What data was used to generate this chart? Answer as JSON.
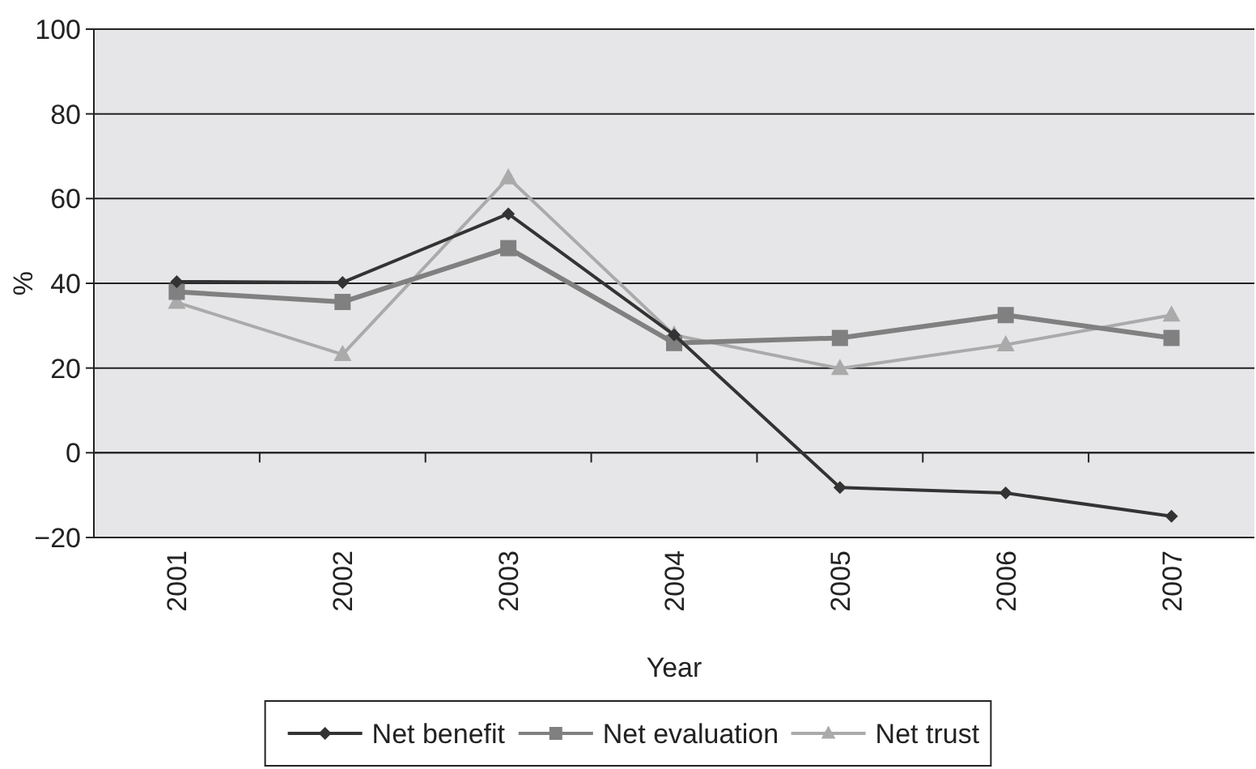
{
  "chart_data": {
    "type": "line",
    "xlabel": "Year",
    "ylabel": "%",
    "categories": [
      "2001",
      "2002",
      "2003",
      "2004",
      "2005",
      "2006",
      "2007"
    ],
    "series": [
      {
        "name": "Net benefit",
        "color": "#333333",
        "marker": "diamond",
        "values": [
          40.4,
          40.2,
          56.4,
          27.8,
          -8.2,
          -9.5,
          -15
        ]
      },
      {
        "name": "Net evaluation",
        "color": "#808080",
        "marker": "square",
        "values": [
          38,
          35.6,
          48.3,
          25.9,
          27.1,
          32.5,
          27.1
        ]
      },
      {
        "name": "Net trust",
        "color": "#aaaaaa",
        "marker": "triangle",
        "values": [
          35.5,
          23.2,
          64.9,
          27.8,
          19.9,
          25.5,
          32.5
        ]
      }
    ],
    "ylim": [
      -20,
      100
    ],
    "yticks": [
      -20,
      0,
      20,
      40,
      60,
      80,
      100
    ],
    "grid": "y",
    "legend": "bottom",
    "line_style": "solid"
  }
}
